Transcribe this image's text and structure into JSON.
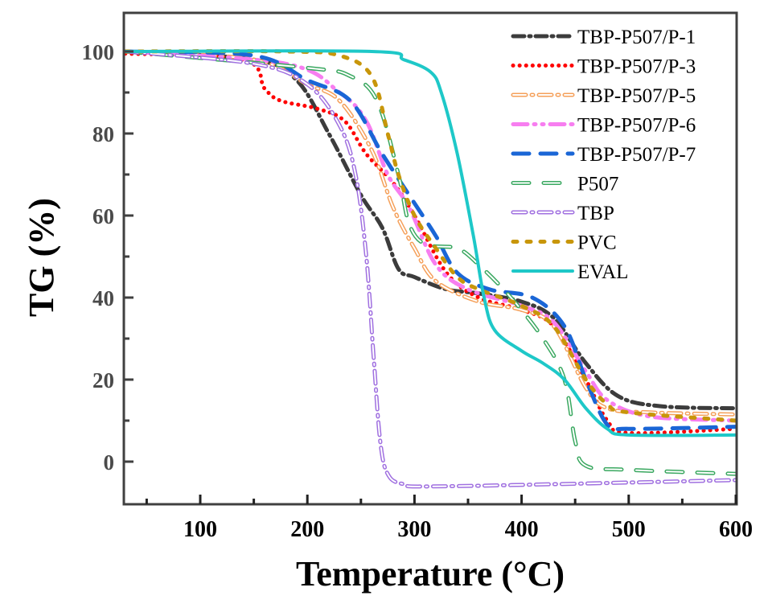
{
  "chart_data": {
    "type": "line",
    "title": "",
    "xlabel": "Temperature (°C)",
    "ylabel": "TG (%)",
    "xlim": [
      30,
      600
    ],
    "ylim": [
      -10,
      110
    ],
    "xticks": [
      100,
      200,
      300,
      400,
      500,
      600
    ],
    "yticks": [
      0,
      20,
      40,
      60,
      80,
      100
    ],
    "xtick_labels": [
      "100",
      "200",
      "300",
      "400",
      "500",
      "600"
    ],
    "ytick_labels": [
      "0",
      "20",
      "40",
      "60",
      "80",
      "100"
    ],
    "grid": false,
    "legend_position": "top-right",
    "series": [
      {
        "name": "TBP-P507/P-1",
        "color": "#3c3c3c",
        "style": "dash-dot",
        "x": [
          30,
          150,
          190,
          220,
          250,
          270,
          285,
          300,
          330,
          360,
          400,
          430,
          460,
          490,
          530,
          600
        ],
        "y": [
          100,
          98,
          93,
          80,
          65,
          57,
          47,
          45,
          42,
          41,
          39,
          35,
          24,
          16,
          13.5,
          13
        ]
      },
      {
        "name": "TBP-P507/P-3",
        "color": "#ff0000",
        "style": "dot",
        "x": [
          30,
          140,
          160,
          175,
          210,
          235,
          255,
          280,
          300,
          330,
          360,
          400,
          430,
          460,
          480,
          500,
          600
        ],
        "y": [
          99.5,
          98,
          91,
          88,
          86,
          83,
          75,
          68,
          60,
          46,
          40,
          37,
          33,
          20,
          10,
          7,
          8
        ]
      },
      {
        "name": "TBP-P507/P-5",
        "color": "#f5a05a",
        "style": "dash-dot-hollow",
        "x": [
          30,
          150,
          200,
          230,
          260,
          280,
          300,
          320,
          360,
          400,
          430,
          460,
          480,
          520,
          600
        ],
        "y": [
          100,
          98,
          92,
          88,
          76,
          62,
          52,
          44,
          39,
          37,
          33,
          18,
          13,
          12,
          11.5
        ]
      },
      {
        "name": "TBP-P507/P-6",
        "color": "#f77ef0",
        "style": "dash-dot-dot",
        "x": [
          30,
          180,
          230,
          255,
          275,
          295,
          320,
          350,
          400,
          430,
          460,
          480,
          520,
          600
        ],
        "y": [
          100,
          97,
          90,
          83,
          70,
          62,
          48,
          42,
          38,
          34,
          22,
          15,
          11,
          10
        ]
      },
      {
        "name": "TBP-P507/P-7",
        "color": "#1a66d6",
        "style": "dash",
        "x": [
          30,
          150,
          200,
          240,
          270,
          300,
          320,
          340,
          370,
          410,
          440,
          460,
          480,
          500,
          600
        ],
        "y": [
          100,
          99,
          93,
          88,
          75,
          63,
          55,
          46,
          42,
          40,
          33,
          20,
          9,
          8,
          8.5
        ]
      },
      {
        "name": "P507",
        "color": "#3aa860",
        "style": "dash-hollow",
        "x": [
          30,
          200,
          240,
          265,
          285,
          295,
          310,
          340,
          360,
          390,
          420,
          440,
          450,
          460,
          500,
          600
        ],
        "y": [
          100,
          96,
          94,
          88,
          70,
          58,
          53,
          52,
          48,
          40,
          30,
          20,
          5,
          -1,
          -2,
          -3
        ]
      },
      {
        "name": "TBP",
        "color": "#a070e0",
        "style": "dash-dot-hollow",
        "x": [
          30,
          150,
          200,
          230,
          245,
          255,
          262,
          268,
          275,
          290,
          330,
          600
        ],
        "y": [
          100,
          97,
          92,
          82,
          70,
          50,
          25,
          5,
          -3,
          -5.5,
          -6,
          -4.5
        ]
      },
      {
        "name": "PVC",
        "color": "#c8960a",
        "style": "short-dash",
        "x": [
          30,
          180,
          230,
          260,
          275,
          285,
          300,
          320,
          340,
          360,
          400,
          430,
          460,
          480,
          500,
          600
        ],
        "y": [
          100,
          100,
          99,
          94,
          80,
          70,
          60,
          52,
          45,
          42,
          38,
          33,
          20,
          14,
          12,
          10
        ]
      },
      {
        "name": "EVAL",
        "color": "#1ec8c8",
        "style": "solid",
        "x": [
          30,
          260,
          290,
          315,
          325,
          340,
          355,
          365,
          375,
          400,
          420,
          440,
          460,
          480,
          500,
          600
        ],
        "y": [
          100,
          100,
          98,
          95,
          90,
          75,
          55,
          40,
          32,
          27,
          24,
          20,
          13,
          8,
          6.5,
          6.5
        ]
      }
    ]
  }
}
